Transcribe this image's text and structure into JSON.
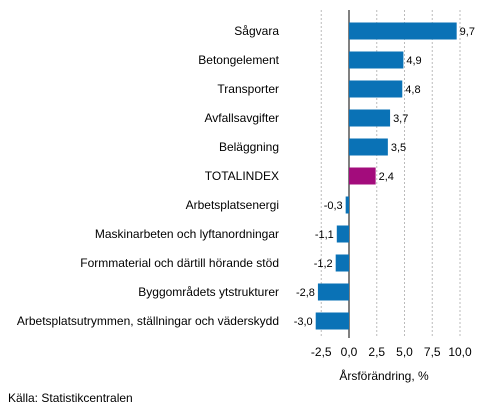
{
  "chart_data": {
    "type": "bar",
    "orientation": "horizontal",
    "categories": [
      "Sågvara",
      "Betongelement",
      "Transporter",
      "Avfallsavgifter",
      "Beläggning",
      "TOTALINDEX",
      "Arbetsplatsenergi",
      "Maskinarbeten och lyftanordningar",
      "Formmaterial och därtill hörande stöd",
      "Byggområdets ytstrukturer",
      "Arbetsplatsutrymmen, ställningar och väderskydd"
    ],
    "values": [
      9.7,
      4.9,
      4.8,
      3.7,
      3.5,
      2.4,
      -0.3,
      -1.1,
      -1.2,
      -2.8,
      -3.0
    ],
    "value_labels": [
      "9,7",
      "4,9",
      "4,8",
      "3,7",
      "3,5",
      "2,4",
      "-0,3",
      "-1,1",
      "-1,2",
      "-2,8",
      "-3,0"
    ],
    "highlight_category": "TOTALINDEX",
    "xlim": [
      -5.5,
      11.5
    ],
    "x_ticks": [
      -2.5,
      0.0,
      2.5,
      5.0,
      7.5,
      10.0
    ],
    "x_tick_labels": [
      "-2,5",
      "0,0",
      "2,5",
      "5,0",
      "7,5",
      "10,0"
    ],
    "xlabel": "Årsförändring, %",
    "grid": "vertical dashed",
    "legend": "none",
    "colors": {
      "bar": "#0a72b6",
      "highlight": "#a30c7c",
      "grid": "#bbbbbb",
      "axis": "#000000"
    }
  },
  "source": "Källa: Statistikcentralen"
}
